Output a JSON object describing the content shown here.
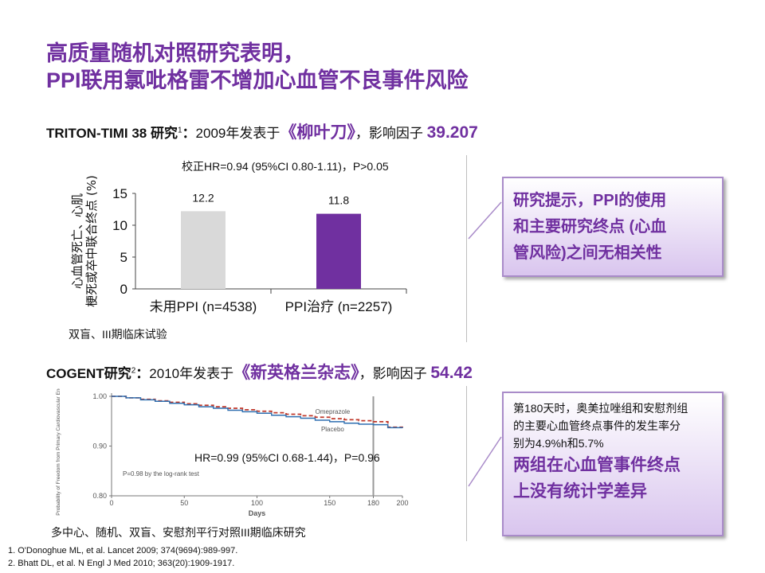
{
  "title": {
    "line1": "高质量随机对照研究表明，",
    "line2": "PPI联用氯吡格雷不增加心血管不良事件风险"
  },
  "triton": {
    "name": "TRITON-TIMI 38 研究",
    "sup": "1",
    "colon": "：",
    "text": "2009年发表于",
    "journal": "《柳叶刀》",
    "text2": "，影响因子 ",
    "impact_factor": "39.207",
    "adjusted_hr": "校正HR=0.94 (95%CI 0.80-1.11)，P>0.05",
    "design": "双盲、III期临床试验"
  },
  "cogent": {
    "name": "COGENT研究",
    "sup": "2",
    "colon": "：",
    "text": "2010年发表于",
    "journal": "《新英格兰杂志》",
    "text2": "，影响因子 ",
    "impact_factor": "54.42",
    "hr": "HR=0.99 (95%CI 0.68-1.44)，P=0.96",
    "design": "多中心、随机、双盲、安慰剂平行对照III期临床研究"
  },
  "box1": {
    "lines": [
      "研究提示，PPI的使用",
      "和主要研究终点 (心血",
      "管风险)之间无相关性"
    ]
  },
  "box2": {
    "small_lines": [
      "第180天时，奥美拉唑组和安慰剂组",
      "的主要心血管终点事件的发生率分",
      "别为4.9%h和5.7%"
    ],
    "big_lines": [
      "两组在心血管事件终点",
      "上没有统计学差异"
    ]
  },
  "references": [
    "1. O'Donoghue ML, et al. Lancet 2009; 374(9694):989-997.",
    "2. Bhatt DL, et al. N Engl J Med 2010; 363(20):1909-1917."
  ],
  "chart_data": [
    {
      "type": "bar",
      "categories": [
        "未用PPI (n=4538)",
        "PPI治疗 (n=2257)"
      ],
      "values": [
        12.2,
        11.8
      ],
      "value_labels": [
        "12.2",
        "11.8"
      ],
      "colors": [
        "#d9d9d9",
        "#7030A0"
      ],
      "ylabel": "心血管死亡、心肌梗死或卒中联合终点 (%)",
      "ylim": [
        0,
        15
      ],
      "yticks": [
        0,
        5,
        10,
        15
      ],
      "grid": false
    },
    {
      "type": "line",
      "xlabel": "Days",
      "ylabel": "Probability of Freedom from Primary Cardiovascular End Point",
      "xlim": [
        0,
        200
      ],
      "ylim": [
        0.8,
        1.0
      ],
      "xticks": [
        0,
        50,
        100,
        150,
        180,
        200
      ],
      "yticks": [
        "0.80",
        "0.90",
        "1.00"
      ],
      "annotation": "P=0.98 by the log-rank test",
      "series": [
        {
          "name": "Omeprazole",
          "color": "#c0392b",
          "dash": true,
          "x": [
            0,
            10,
            20,
            30,
            40,
            50,
            60,
            70,
            80,
            90,
            100,
            110,
            120,
            130,
            140,
            150,
            160,
            170,
            180,
            190,
            200
          ],
          "y": [
            1.0,
            0.997,
            0.994,
            0.991,
            0.988,
            0.985,
            0.982,
            0.979,
            0.976,
            0.973,
            0.97,
            0.967,
            0.964,
            0.961,
            0.958,
            0.955,
            0.953,
            0.951,
            0.949,
            0.938,
            0.937
          ]
        },
        {
          "name": "Placebo",
          "color": "#2e6fb0",
          "dash": false,
          "x": [
            0,
            10,
            20,
            30,
            40,
            50,
            60,
            70,
            80,
            90,
            100,
            110,
            120,
            130,
            140,
            150,
            160,
            170,
            180,
            190,
            200
          ],
          "y": [
            1.0,
            0.997,
            0.993,
            0.99,
            0.986,
            0.983,
            0.979,
            0.976,
            0.972,
            0.969,
            0.966,
            0.962,
            0.959,
            0.956,
            0.952,
            0.949,
            0.946,
            0.944,
            0.943,
            0.937,
            0.936
          ]
        }
      ]
    }
  ]
}
